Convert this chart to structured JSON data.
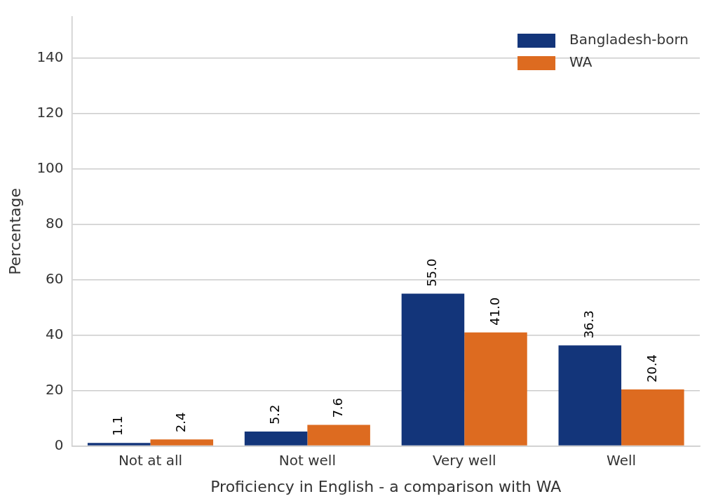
{
  "chart_data": {
    "type": "bar",
    "xlabel": "Proficiency in English - a comparison with WA",
    "ylabel": "Percentage",
    "categories": [
      "Not at all",
      "Not well",
      "Very well",
      "Well"
    ],
    "series": [
      {
        "name": "Bangladesh-born",
        "color": "#13357a",
        "values": [
          1.1,
          5.2,
          55.0,
          36.3
        ],
        "value_labels": [
          "1.1",
          "5.2",
          "55.0",
          "36.3"
        ]
      },
      {
        "name": "WA",
        "color": "#dd6b20",
        "values": [
          2.4,
          7.6,
          41.0,
          20.4
        ],
        "value_labels": [
          "2.4",
          "7.6",
          "41.0",
          "20.4"
        ]
      }
    ],
    "ylim": [
      0,
      155
    ],
    "yticks": [
      0,
      20,
      40,
      60,
      80,
      100,
      120,
      140
    ],
    "grid": "y",
    "legend": "top right"
  }
}
